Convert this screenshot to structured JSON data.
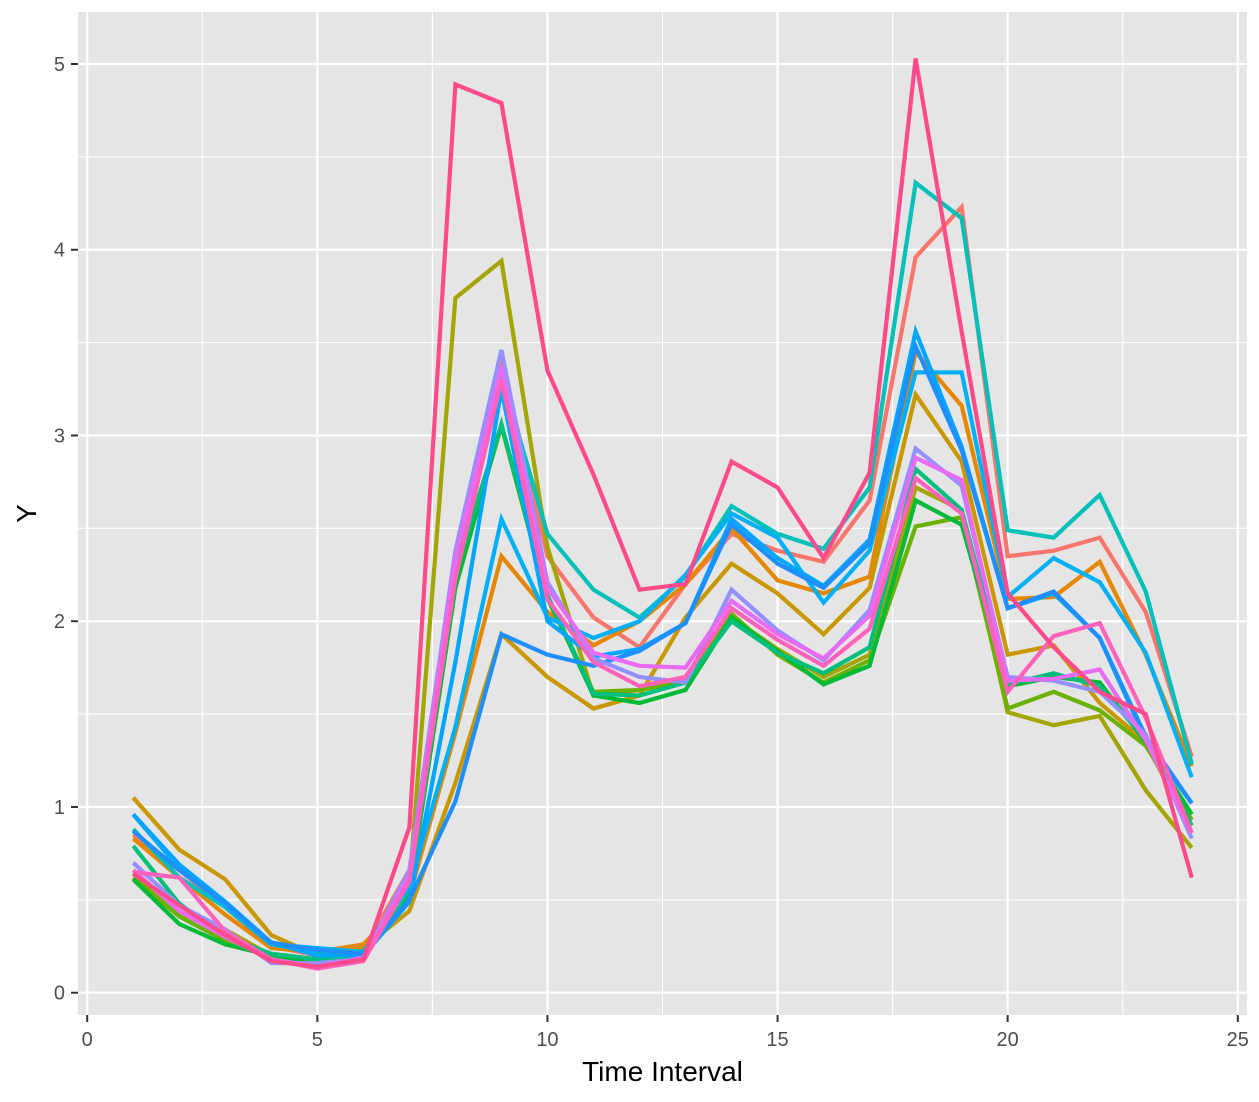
{
  "chart_data": {
    "type": "line",
    "title": "",
    "xlabel": "Time Interval",
    "ylabel": "Y",
    "xlim": [
      -0.2,
      25.2
    ],
    "ylim": [
      -0.12,
      5.28
    ],
    "xticks": [
      0,
      5,
      10,
      15,
      20,
      25
    ],
    "yticks": [
      0,
      1,
      2,
      3,
      4,
      5
    ],
    "xtick_labels": [
      "0",
      "5",
      "10",
      "15",
      "20",
      "25"
    ],
    "ytick_labels": [
      "0",
      "1",
      "2",
      "3",
      "4",
      "5"
    ],
    "x_minor_gridlines": [
      2.5,
      7.5,
      12.5,
      17.5,
      22.5
    ],
    "y_minor_gridlines": [
      0.5,
      1.5,
      2.5,
      3.5,
      4.5
    ],
    "grid": true,
    "legend": "none",
    "panel_background": "#e5e5e5",
    "grid_color": "#ffffff",
    "x": [
      1,
      2,
      3,
      4,
      5,
      6,
      7,
      8,
      9,
      10,
      11,
      12,
      13,
      14,
      15,
      16,
      17,
      18,
      19,
      20,
      21,
      22,
      23,
      24
    ],
    "series": [
      {
        "color": "#F8766D",
        "values": [
          0.85,
          0.66,
          0.46,
          0.25,
          0.2,
          0.23,
          0.66,
          2.2,
          3.4,
          2.35,
          2.02,
          1.86,
          2.2,
          2.47,
          2.38,
          2.32,
          2.65,
          3.96,
          4.23,
          2.35,
          2.38,
          2.45,
          2.05,
          1.27
        ]
      },
      {
        "color": "#E58700",
        "values": [
          0.83,
          0.62,
          0.42,
          0.24,
          0.22,
          0.26,
          0.52,
          1.4,
          2.35,
          2.05,
          1.87,
          2.0,
          2.2,
          2.5,
          2.22,
          2.15,
          2.24,
          3.45,
          3.16,
          2.12,
          2.13,
          2.32,
          1.82,
          1.22
        ]
      },
      {
        "color": "#C99800",
        "values": [
          1.05,
          0.77,
          0.61,
          0.31,
          0.2,
          0.24,
          0.44,
          1.13,
          1.93,
          1.7,
          1.53,
          1.6,
          2.02,
          2.31,
          2.15,
          1.93,
          2.18,
          3.22,
          2.86,
          1.82,
          1.87,
          1.56,
          1.35,
          0.86
        ]
      },
      {
        "color": "#A3A500",
        "values": [
          0.64,
          0.42,
          0.34,
          0.2,
          0.18,
          0.19,
          0.58,
          3.74,
          3.94,
          2.4,
          1.6,
          1.63,
          1.68,
          2.02,
          1.85,
          1.7,
          1.82,
          2.72,
          2.6,
          1.51,
          1.44,
          1.49,
          1.09,
          0.78
        ]
      },
      {
        "color": "#6BB100",
        "values": [
          0.62,
          0.41,
          0.28,
          0.2,
          0.16,
          0.21,
          0.58,
          2.21,
          3.05,
          2.12,
          1.62,
          1.63,
          1.67,
          2.04,
          1.82,
          1.67,
          1.79,
          2.51,
          2.56,
          1.53,
          1.62,
          1.52,
          1.33,
          0.93
        ]
      },
      {
        "color": "#00BA38",
        "values": [
          0.61,
          0.37,
          0.26,
          0.2,
          0.16,
          0.2,
          0.54,
          2.18,
          3.06,
          2.13,
          1.6,
          1.56,
          1.63,
          2.02,
          1.84,
          1.66,
          1.76,
          2.65,
          2.52,
          1.65,
          1.7,
          1.67,
          1.35,
          0.96
        ]
      },
      {
        "color": "#00BF7D",
        "values": [
          0.79,
          0.48,
          0.3,
          0.21,
          0.18,
          0.2,
          0.55,
          2.27,
          3.06,
          2.14,
          1.61,
          1.6,
          1.67,
          2.0,
          1.83,
          1.72,
          1.86,
          2.82,
          2.6,
          1.66,
          1.72,
          1.65,
          1.36,
          0.9
        ]
      },
      {
        "color": "#00C0B8",
        "values": [
          0.88,
          0.62,
          0.46,
          0.26,
          0.22,
          0.21,
          0.62,
          2.33,
          3.32,
          2.47,
          2.17,
          2.02,
          2.24,
          2.62,
          2.47,
          2.39,
          2.72,
          4.36,
          4.17,
          2.49,
          2.45,
          2.68,
          2.16,
          1.23
        ]
      },
      {
        "color": "#00B0F6",
        "values": [
          0.96,
          0.67,
          0.47,
          0.26,
          0.24,
          0.22,
          0.57,
          1.43,
          2.55,
          2.02,
          1.91,
          2.0,
          2.25,
          2.58,
          2.45,
          2.1,
          2.38,
          3.34,
          3.34,
          2.13,
          2.34,
          2.21,
          1.83,
          1.16
        ]
      },
      {
        "color": "#00A5FF",
        "values": [
          0.96,
          0.69,
          0.49,
          0.27,
          0.2,
          0.2,
          0.49,
          1.78,
          3.25,
          2.0,
          1.81,
          1.85,
          1.99,
          2.55,
          2.34,
          2.19,
          2.44,
          3.56,
          2.94,
          2.07,
          2.15,
          1.91,
          1.36,
          1.02
        ]
      },
      {
        "color": "#1F8FFF",
        "values": [
          0.87,
          0.66,
          0.48,
          0.27,
          0.23,
          0.21,
          0.5,
          1.03,
          1.93,
          1.82,
          1.76,
          1.84,
          1.99,
          2.52,
          2.31,
          2.18,
          2.42,
          3.48,
          2.92,
          2.07,
          2.16,
          1.91,
          1.38,
          1.02
        ]
      },
      {
        "color": "#9590FF",
        "values": [
          0.7,
          0.47,
          0.34,
          0.16,
          0.16,
          0.18,
          0.66,
          2.38,
          3.46,
          2.21,
          1.8,
          1.7,
          1.67,
          2.17,
          1.95,
          1.79,
          2.06,
          2.93,
          2.73,
          1.7,
          1.68,
          1.62,
          1.39,
          0.83
        ]
      },
      {
        "color": "#E76BF3",
        "values": [
          0.66,
          0.44,
          0.3,
          0.18,
          0.14,
          0.19,
          0.63,
          2.34,
          3.37,
          2.18,
          1.83,
          1.76,
          1.75,
          2.11,
          1.93,
          1.8,
          2.03,
          2.88,
          2.76,
          1.68,
          1.69,
          1.74,
          1.36,
          0.86
        ]
      },
      {
        "color": "#FF62BC",
        "values": [
          0.65,
          0.62,
          0.33,
          0.18,
          0.13,
          0.17,
          0.6,
          2.23,
          3.3,
          2.12,
          1.78,
          1.65,
          1.7,
          2.07,
          1.9,
          1.76,
          1.96,
          2.77,
          2.58,
          1.62,
          1.92,
          1.99,
          1.48,
          0.86
        ]
      },
      {
        "color": "#FF4B8C",
        "values": [
          0.64,
          0.47,
          0.31,
          0.17,
          0.14,
          0.18,
          0.89,
          4.89,
          4.79,
          3.35,
          2.79,
          2.17,
          2.2,
          2.86,
          2.72,
          2.34,
          2.8,
          5.03,
          3.56,
          2.15,
          1.86,
          1.62,
          1.5,
          0.62
        ]
      }
    ]
  }
}
